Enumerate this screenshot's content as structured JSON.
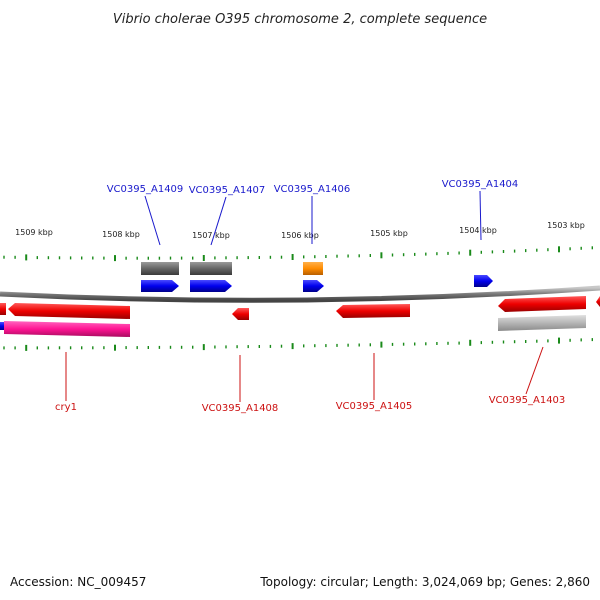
{
  "title": "Vibrio cholerae O395 chromosome 2, complete sequence",
  "footer": {
    "accession": "Accession: NC_009457",
    "summary": "Topology: circular; Length: 3,024,069 bp; Genes: 2,860"
  },
  "scale": {
    "ticks": [
      "1509 kbp",
      "1508 kbp",
      "1507 kbp",
      "1506 kbp",
      "1505 kbp",
      "1504 kbp",
      "1503 kbp"
    ]
  },
  "gene_labels": {
    "forward": [
      "VC0395_A1409",
      "VC0395_A1407",
      "VC0395_A1406",
      "VC0395_A1404"
    ],
    "reverse": [
      "cry1",
      "VC0395_A1408",
      "VC0395_A1405",
      "VC0395_A1403"
    ]
  },
  "colors": {
    "forward_label": "#1a1acc",
    "reverse_label": "#cc1111",
    "forward_cds": "#0000ee",
    "reverse_cds": "#ee0000",
    "gene": "#666666",
    "rna": "#ff8c00",
    "pseudo": "#ff1493",
    "backbone": "#777777",
    "tick": "#1a8a1a"
  }
}
